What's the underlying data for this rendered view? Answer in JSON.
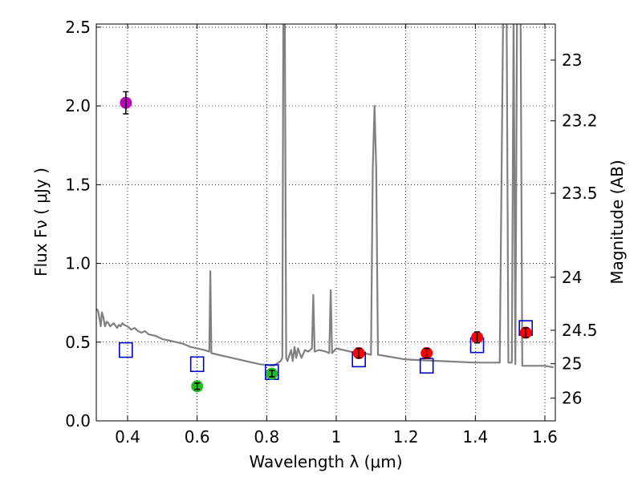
{
  "chart_data": {
    "type": "scatter",
    "xlabel": "Wavelength  λ (μm)",
    "ylabel": "Flux  Fν  ( μJy )",
    "ylabel_right": "Magnitude (AB)",
    "xlim": [
      0.31,
      1.63
    ],
    "ylim": [
      0.0,
      2.52
    ],
    "grid": true,
    "xticks": [
      {
        "value": 0.4,
        "label": "0.4"
      },
      {
        "value": 0.6,
        "label": "0.6"
      },
      {
        "value": 0.8,
        "label": "0.8"
      },
      {
        "value": 1.0,
        "label": "1"
      },
      {
        "value": 1.2,
        "label": "1.2"
      },
      {
        "value": 1.4,
        "label": "1.4"
      },
      {
        "value": 1.6,
        "label": "1.6"
      }
    ],
    "yticks": [
      {
        "value": 0.0,
        "label": "0.0"
      },
      {
        "value": 0.5,
        "label": "0.5"
      },
      {
        "value": 1.0,
        "label": "1.0"
      },
      {
        "value": 1.5,
        "label": "1.5"
      },
      {
        "value": 2.0,
        "label": "2.0"
      },
      {
        "value": 2.5,
        "label": "2.5"
      }
    ],
    "right_ticks": [
      {
        "mag": 23,
        "label": "23"
      },
      {
        "mag": 23.2,
        "label": "23.2"
      },
      {
        "mag": 23.5,
        "label": "23.5"
      },
      {
        "mag": 24,
        "label": "24"
      },
      {
        "mag": 24.5,
        "label": "24.5"
      },
      {
        "mag": 25,
        "label": "25"
      },
      {
        "mag": 26,
        "label": "26"
      }
    ],
    "series": [
      {
        "name": "model-spectrum",
        "kind": "line",
        "color": "#808080",
        "points": [
          [
            0.31,
            0.71
          ],
          [
            0.315,
            0.7
          ],
          [
            0.32,
            0.64
          ],
          [
            0.323,
            0.6
          ],
          [
            0.326,
            0.69
          ],
          [
            0.33,
            0.66
          ],
          [
            0.335,
            0.6
          ],
          [
            0.34,
            0.63
          ],
          [
            0.345,
            0.62
          ],
          [
            0.35,
            0.6
          ],
          [
            0.36,
            0.62
          ],
          [
            0.37,
            0.59
          ],
          [
            0.375,
            0.61
          ],
          [
            0.38,
            0.6
          ],
          [
            0.385,
            0.62
          ],
          [
            0.39,
            0.61
          ],
          [
            0.4,
            0.6
          ],
          [
            0.41,
            0.58
          ],
          [
            0.42,
            0.59
          ],
          [
            0.43,
            0.57
          ],
          [
            0.44,
            0.56
          ],
          [
            0.45,
            0.57
          ],
          [
            0.46,
            0.55
          ],
          [
            0.48,
            0.54
          ],
          [
            0.5,
            0.52
          ],
          [
            0.52,
            0.51
          ],
          [
            0.54,
            0.5
          ],
          [
            0.56,
            0.49
          ],
          [
            0.58,
            0.47
          ],
          [
            0.6,
            0.46
          ],
          [
            0.62,
            0.45
          ],
          [
            0.635,
            0.44
          ],
          [
            0.638,
            0.95
          ],
          [
            0.641,
            0.43
          ],
          [
            0.66,
            0.42
          ],
          [
            0.7,
            0.4
          ],
          [
            0.74,
            0.38
          ],
          [
            0.78,
            0.36
          ],
          [
            0.82,
            0.35
          ],
          [
            0.84,
            0.38
          ],
          [
            0.845,
            0.4
          ],
          [
            0.848,
            2.6
          ],
          [
            0.852,
            2.6
          ],
          [
            0.856,
            0.4
          ],
          [
            0.86,
            0.38
          ],
          [
            0.87,
            0.45
          ],
          [
            0.875,
            0.38
          ],
          [
            0.88,
            0.47
          ],
          [
            0.885,
            0.4
          ],
          [
            0.89,
            0.46
          ],
          [
            0.9,
            0.4
          ],
          [
            0.91,
            0.45
          ],
          [
            0.92,
            0.44
          ],
          [
            0.93,
            0.46
          ],
          [
            0.934,
            0.8
          ],
          [
            0.938,
            0.44
          ],
          [
            0.95,
            0.45
          ],
          [
            0.97,
            0.44
          ],
          [
            0.98,
            0.43
          ],
          [
            0.984,
            0.83
          ],
          [
            0.988,
            0.43
          ],
          [
            1.0,
            0.46
          ],
          [
            1.04,
            0.44
          ],
          [
            1.08,
            0.43
          ],
          [
            1.1,
            0.42
          ],
          [
            1.105,
            1.6
          ],
          [
            1.11,
            2.0
          ],
          [
            1.115,
            1.6
          ],
          [
            1.12,
            0.42
          ],
          [
            1.2,
            0.39
          ],
          [
            1.3,
            0.38
          ],
          [
            1.4,
            0.37
          ],
          [
            1.47,
            0.37
          ],
          [
            1.48,
            2.6
          ],
          [
            1.49,
            2.6
          ],
          [
            1.495,
            0.37
          ],
          [
            1.505,
            0.37
          ],
          [
            1.51,
            2.6
          ],
          [
            1.515,
            0.36
          ],
          [
            1.52,
            2.6
          ],
          [
            1.53,
            2.6
          ],
          [
            1.535,
            0.35
          ],
          [
            1.56,
            0.35
          ],
          [
            1.6,
            0.35
          ],
          [
            1.625,
            0.34
          ]
        ]
      },
      {
        "name": "photometry-box",
        "kind": "marker",
        "marker": "square",
        "color": "#0000cc",
        "points": [
          [
            0.395,
            0.45
          ],
          [
            0.6,
            0.36
          ],
          [
            0.815,
            0.31
          ],
          [
            1.065,
            0.39
          ],
          [
            1.26,
            0.35
          ],
          [
            1.405,
            0.48
          ],
          [
            1.545,
            0.59
          ]
        ]
      },
      {
        "name": "detection-violet",
        "kind": "marker",
        "marker": "circle",
        "color": "#bf00bf",
        "points": [
          [
            0.395,
            2.02,
            0.07
          ]
        ]
      },
      {
        "name": "detection-green",
        "kind": "marker",
        "marker": "circle",
        "color": "#22bb22",
        "points": [
          [
            0.6,
            0.22,
            0.02
          ],
          [
            0.815,
            0.3,
            0.02
          ]
        ]
      },
      {
        "name": "detection-red",
        "kind": "marker",
        "marker": "circle",
        "color": "#ff0000",
        "points": [
          [
            1.065,
            0.43,
            0.03
          ],
          [
            1.26,
            0.43,
            0.03
          ],
          [
            1.405,
            0.53,
            0.035
          ],
          [
            1.545,
            0.56,
            0.03
          ]
        ]
      }
    ]
  }
}
